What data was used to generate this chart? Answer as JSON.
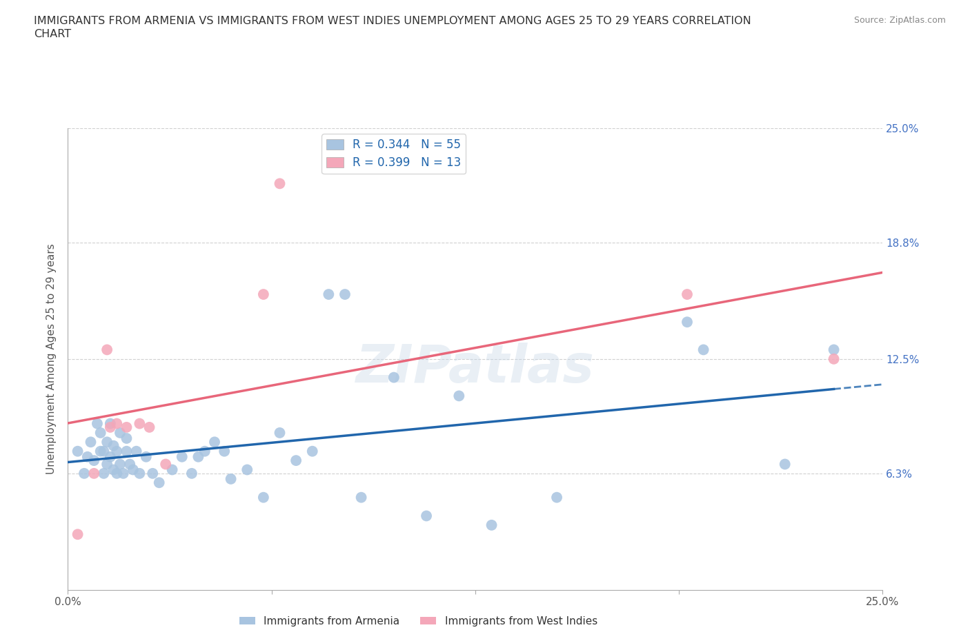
{
  "title_line1": "IMMIGRANTS FROM ARMENIA VS IMMIGRANTS FROM WEST INDIES UNEMPLOYMENT AMONG AGES 25 TO 29 YEARS CORRELATION",
  "title_line2": "CHART",
  "source_text": "Source: ZipAtlas.com",
  "ylabel": "Unemployment Among Ages 25 to 29 years",
  "xlim": [
    0.0,
    0.25
  ],
  "ylim": [
    0.0,
    0.25
  ],
  "yticks": [
    0.0,
    0.063,
    0.125,
    0.188,
    0.25
  ],
  "ytick_labels_right": [
    "",
    "6.3%",
    "12.5%",
    "18.8%",
    "25.0%"
  ],
  "xticks": [
    0.0,
    0.0625,
    0.125,
    0.1875,
    0.25
  ],
  "xtick_labels": [
    "0.0%",
    "",
    "",
    "",
    "25.0%"
  ],
  "armenia_R": 0.344,
  "armenia_N": 55,
  "westindies_R": 0.399,
  "westindies_N": 13,
  "armenia_color": "#a8c4e0",
  "westindies_color": "#f4a7b9",
  "armenia_line_color": "#2166ac",
  "westindies_line_color": "#e8667a",
  "background_color": "#ffffff",
  "grid_color": "#d0d0d0",
  "watermark": "ZIPatlas",
  "armenia_x": [
    0.003,
    0.005,
    0.006,
    0.007,
    0.008,
    0.009,
    0.01,
    0.01,
    0.011,
    0.011,
    0.012,
    0.012,
    0.013,
    0.013,
    0.014,
    0.014,
    0.015,
    0.015,
    0.016,
    0.016,
    0.017,
    0.018,
    0.018,
    0.019,
    0.02,
    0.021,
    0.022,
    0.024,
    0.026,
    0.028,
    0.032,
    0.035,
    0.038,
    0.04,
    0.042,
    0.045,
    0.048,
    0.05,
    0.055,
    0.06,
    0.065,
    0.07,
    0.075,
    0.08,
    0.085,
    0.09,
    0.1,
    0.11,
    0.12,
    0.13,
    0.15,
    0.19,
    0.195,
    0.22,
    0.235
  ],
  "armenia_y": [
    0.075,
    0.063,
    0.072,
    0.08,
    0.07,
    0.09,
    0.075,
    0.085,
    0.063,
    0.075,
    0.08,
    0.068,
    0.072,
    0.09,
    0.065,
    0.078,
    0.063,
    0.075,
    0.068,
    0.085,
    0.063,
    0.075,
    0.082,
    0.068,
    0.065,
    0.075,
    0.063,
    0.072,
    0.063,
    0.058,
    0.065,
    0.072,
    0.063,
    0.072,
    0.075,
    0.08,
    0.075,
    0.06,
    0.065,
    0.05,
    0.085,
    0.07,
    0.075,
    0.16,
    0.16,
    0.05,
    0.115,
    0.04,
    0.105,
    0.035,
    0.05,
    0.145,
    0.13,
    0.068,
    0.13
  ],
  "westindies_x": [
    0.003,
    0.008,
    0.012,
    0.013,
    0.015,
    0.018,
    0.022,
    0.025,
    0.03,
    0.06,
    0.065,
    0.19,
    0.235
  ],
  "westindies_y": [
    0.03,
    0.063,
    0.13,
    0.088,
    0.09,
    0.088,
    0.09,
    0.088,
    0.068,
    0.16,
    0.22,
    0.16,
    0.125
  ]
}
